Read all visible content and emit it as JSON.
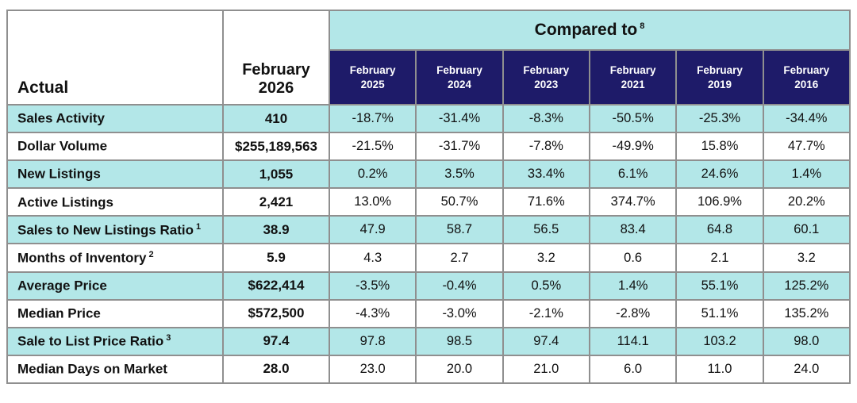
{
  "colors": {
    "teal": "#b3e7e8",
    "navy": "#1e1b69",
    "border": "#8f8f8f",
    "text": "#111111",
    "navy_text": "#ffffff"
  },
  "chart_data": {
    "type": "table",
    "row_header": "Actual",
    "actual_column": "February 2026",
    "title": "Compared to",
    "title_superscript": "8",
    "comparison_columns": [
      "February 2025",
      "February 2024",
      "February 2023",
      "February 2021",
      "February 2019",
      "February 2016"
    ],
    "rows": [
      {
        "label": "Sales Activity",
        "sup": "",
        "actual": "410",
        "comparisons": [
          "-18.7%",
          "-31.4%",
          "-8.3%",
          "-50.5%",
          "-25.3%",
          "-34.4%"
        ]
      },
      {
        "label": "Dollar Volume",
        "sup": "",
        "actual": "$255,189,563",
        "comparisons": [
          "-21.5%",
          "-31.7%",
          "-7.8%",
          "-49.9%",
          "15.8%",
          "47.7%"
        ]
      },
      {
        "label": "New Listings",
        "sup": "",
        "actual": "1,055",
        "comparisons": [
          "0.2%",
          "3.5%",
          "33.4%",
          "6.1%",
          "24.6%",
          "1.4%"
        ]
      },
      {
        "label": "Active Listings",
        "sup": "",
        "actual": "2,421",
        "comparisons": [
          "13.0%",
          "50.7%",
          "71.6%",
          "374.7%",
          "106.9%",
          "20.2%"
        ]
      },
      {
        "label": "Sales to New Listings Ratio",
        "sup": "1",
        "actual": "38.9",
        "comparisons": [
          "47.9",
          "58.7",
          "56.5",
          "83.4",
          "64.8",
          "60.1"
        ]
      },
      {
        "label": "Months of Inventory",
        "sup": "2",
        "actual": "5.9",
        "comparisons": [
          "4.3",
          "2.7",
          "3.2",
          "0.6",
          "2.1",
          "3.2"
        ]
      },
      {
        "label": "Average Price",
        "sup": "",
        "actual": "$622,414",
        "comparisons": [
          "-3.5%",
          "-0.4%",
          "0.5%",
          "1.4%",
          "55.1%",
          "125.2%"
        ]
      },
      {
        "label": "Median Price",
        "sup": "",
        "actual": "$572,500",
        "comparisons": [
          "-4.3%",
          "-3.0%",
          "-2.1%",
          "-2.8%",
          "51.1%",
          "135.2%"
        ]
      },
      {
        "label": "Sale to List Price Ratio",
        "sup": "3",
        "actual": "97.4",
        "comparisons": [
          "97.8",
          "98.5",
          "97.4",
          "114.1",
          "103.2",
          "98.0"
        ]
      },
      {
        "label": "Median Days on Market",
        "sup": "",
        "actual": "28.0",
        "comparisons": [
          "23.0",
          "20.0",
          "21.0",
          "6.0",
          "11.0",
          "24.0"
        ]
      }
    ]
  }
}
